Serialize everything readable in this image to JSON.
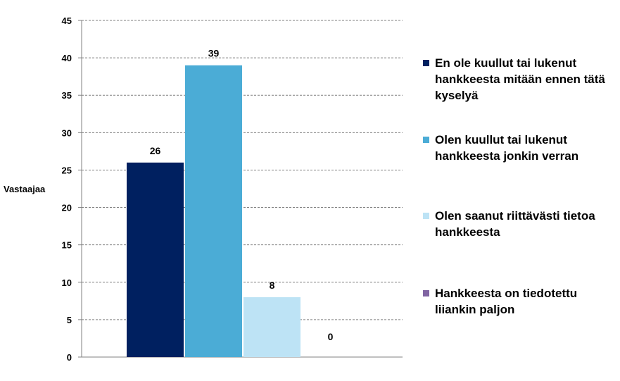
{
  "chart_data": {
    "type": "bar",
    "ylabel": "Vastaajaa",
    "ylim": [
      0,
      45
    ],
    "ytick_step": 5,
    "grid": "horizontal-dashed",
    "legend_position": "right",
    "series": [
      {
        "name": "En ole kuullut tai lukenut hankkeesta mitään ennen tätä kyselyä",
        "value": 26,
        "label": "26",
        "color": "#002060"
      },
      {
        "name": "Olen kuullut tai lukenut hankkeesta jonkin verran",
        "value": 39,
        "label": "39",
        "color": "#4BACD6"
      },
      {
        "name": "Olen saanut riittävästi tietoa hankkeesta",
        "value": 8,
        "label": "8",
        "color": "#BDE3F5"
      },
      {
        "name": "Hankkeesta on tiedotettu liiankin paljon",
        "value": 0,
        "label": "0",
        "color": "#8064A2"
      }
    ]
  }
}
